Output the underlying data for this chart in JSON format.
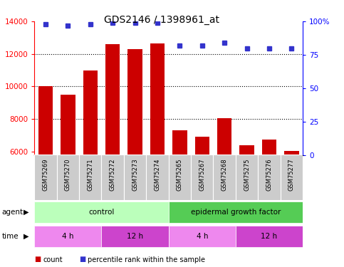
{
  "title": "GDS2146 / 1398961_at",
  "samples": [
    "GSM75269",
    "GSM75270",
    "GSM75271",
    "GSM75272",
    "GSM75273",
    "GSM75274",
    "GSM75265",
    "GSM75267",
    "GSM75268",
    "GSM75275",
    "GSM75276",
    "GSM75277"
  ],
  "bar_values": [
    10000,
    9500,
    11000,
    12600,
    12300,
    12650,
    7300,
    6900,
    8050,
    6400,
    6750,
    6050
  ],
  "bar_color": "#cc0000",
  "percentile_values": [
    98,
    97,
    98,
    99,
    99,
    99,
    82,
    82,
    84,
    80,
    80,
    80
  ],
  "percentile_color": "#3333cc",
  "ylim_left": [
    5800,
    14000
  ],
  "ylim_right": [
    0,
    100
  ],
  "yticks_left": [
    6000,
    8000,
    10000,
    12000,
    14000
  ],
  "yticks_right": [
    0,
    25,
    50,
    75,
    100
  ],
  "background_color": "#ffffff",
  "agent_control_color": "#bbffbb",
  "agent_egf_color": "#55cc55",
  "time_4h_color": "#ee88ee",
  "time_12h_color": "#cc44cc",
  "label_row_bg": "#cccccc",
  "agent_label": "agent",
  "time_label": "time",
  "legend_count_label": "count",
  "legend_pct_label": "percentile rank within the sample",
  "time_groups": [
    {
      "label": "4 h",
      "start": 0,
      "end": 3
    },
    {
      "label": "12 h",
      "start": 3,
      "end": 6
    },
    {
      "label": "4 h",
      "start": 6,
      "end": 9
    },
    {
      "label": "12 h",
      "start": 9,
      "end": 12
    }
  ],
  "agent_groups": [
    {
      "label": "control",
      "start": 0,
      "end": 6
    },
    {
      "label": "epidermal growth factor",
      "start": 6,
      "end": 12
    }
  ]
}
